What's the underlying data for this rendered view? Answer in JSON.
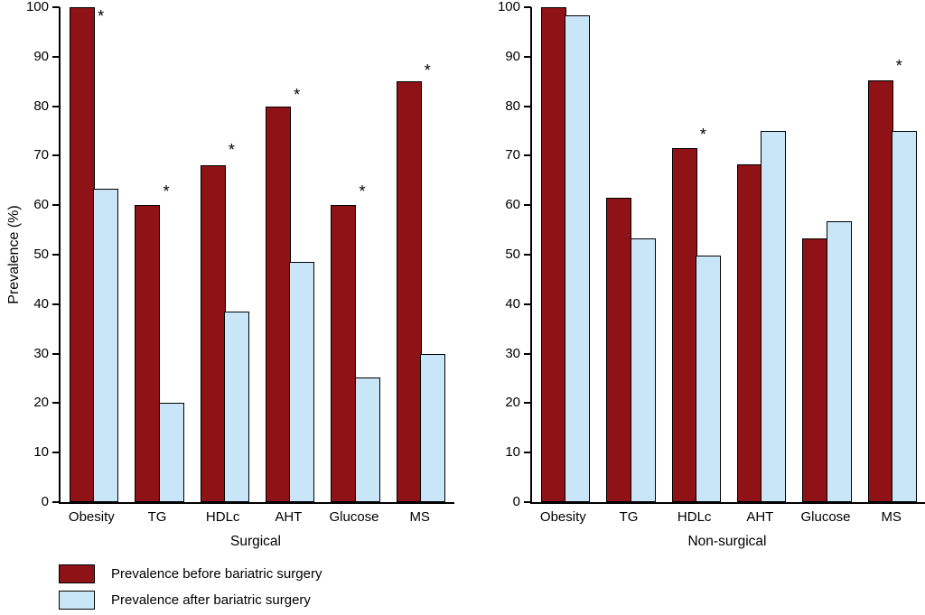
{
  "chart_data": {
    "type": "bar",
    "title": "",
    "ylabel": "Prevalence (%)",
    "xlabel": "",
    "ylim": [
      0,
      100
    ],
    "yticks": [
      0,
      10,
      20,
      30,
      40,
      50,
      60,
      70,
      80,
      90,
      100
    ],
    "grid": false,
    "sig_symbol": "*",
    "series_meta": [
      {
        "name": "Prevalence before bariatric surgery",
        "color": "#8e1216"
      },
      {
        "name": "Prevalence after bariatric surgery",
        "color": "#c9e6f8"
      }
    ],
    "panels": [
      {
        "title": "Surgical",
        "categories": [
          "Obesity",
          "TG",
          "HDLc",
          "AHT",
          "Glucose",
          "MS"
        ],
        "series": [
          {
            "name": "Prevalence before bariatric surgery",
            "values": [
              100,
              60,
              68,
              80,
              60,
              85
            ]
          },
          {
            "name": "Prevalence after bariatric surgery",
            "values": [
              63.3,
              20,
              38.5,
              48.5,
              25.2,
              30
            ]
          }
        ],
        "sig_markers": [
          {
            "index": 0,
            "category": "Obesity",
            "y": 97.5
          },
          {
            "index": 1,
            "category": "TG",
            "y": 62
          },
          {
            "index": 2,
            "category": "HDLc",
            "y": 70.5
          },
          {
            "index": 3,
            "category": "AHT",
            "y": 81.5
          },
          {
            "index": 4,
            "category": "Glucose",
            "y": 62
          },
          {
            "index": 5,
            "category": "MS",
            "y": 86.5
          }
        ]
      },
      {
        "title": "Non-surgical",
        "categories": [
          "Obesity",
          "TG",
          "HDLc",
          "AHT",
          "Glucose",
          "MS"
        ],
        "series": [
          {
            "name": "Prevalence before bariatric surgery",
            "values": [
              100,
              61.5,
              71.5,
              68.2,
              53.3,
              85.2
            ]
          },
          {
            "name": "Prevalence after bariatric surgery",
            "values": [
              98.3,
              53.3,
              49.8,
              75,
              56.8,
              75
            ]
          }
        ],
        "sig_markers": [
          {
            "index": 2,
            "category": "HDLc",
            "y": 73.5
          },
          {
            "index": 5,
            "category": "MS",
            "y": 87.5
          }
        ]
      }
    ],
    "legend": {
      "position": "bottom-left",
      "items": [
        "Prevalence before bariatric surgery",
        "Prevalence after bariatric surgery"
      ]
    }
  }
}
